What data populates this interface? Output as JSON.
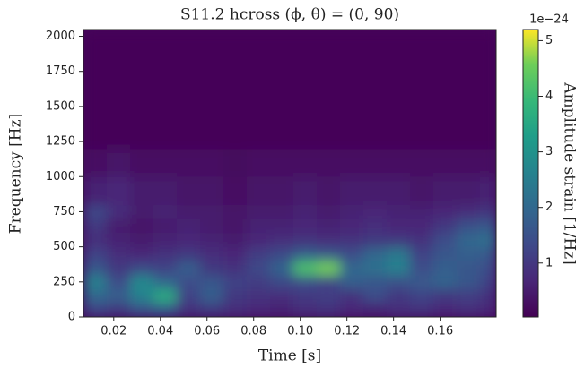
{
  "chart_data": {
    "type": "heatmap",
    "title": "S11.2 hcross  (ϕ, θ) = (0, 90)",
    "x_label": "Time [s]",
    "y_label": "Frequency [Hz]",
    "colorbar_label": "Amplitude strain [1/Hz]",
    "colorbar_offset": "1e−24",
    "colormap": "viridis",
    "xlim": [
      0.007,
      0.184
    ],
    "ylim": [
      0,
      2048
    ],
    "xticks": [
      0.02,
      0.04,
      0.06,
      0.08,
      {
        "value": 0.1,
        "label": "0.10"
      },
      0.12,
      0.14,
      0.16
    ],
    "yticks": [
      0,
      250,
      500,
      750,
      1000,
      1250,
      1500,
      1750,
      2000
    ],
    "clim": [
      0.03,
      5.2
    ],
    "cticks": [
      1,
      2,
      3,
      4,
      5
    ],
    "x_bins": [
      0.007,
      0.017,
      0.027,
      0.037,
      0.047,
      0.057,
      0.067,
      0.077,
      0.087,
      0.097,
      0.107,
      0.117,
      0.127,
      0.137,
      0.147,
      0.157,
      0.167,
      0.177,
      0.184
    ],
    "y_bins": [
      0,
      100,
      200,
      300,
      400,
      500,
      600,
      700,
      800,
      1000,
      1200,
      2048
    ],
    "z": [
      [
        1.2,
        1.0,
        1.5,
        1.6,
        0.9,
        1.0,
        0.8,
        0.7,
        0.6,
        0.8,
        0.9,
        0.7,
        0.6,
        0.8,
        0.9,
        0.7,
        0.8,
        0.7
      ],
      [
        2.0,
        1.8,
        2.6,
        3.6,
        1.2,
        1.8,
        1.0,
        0.9,
        0.8,
        1.0,
        1.1,
        0.9,
        1.4,
        1.0,
        1.2,
        1.0,
        1.1,
        0.9
      ],
      [
        2.6,
        1.4,
        2.8,
        2.0,
        1.4,
        1.6,
        1.2,
        1.1,
        1.3,
        1.4,
        1.2,
        1.8,
        1.6,
        1.5,
        1.7,
        1.9,
        1.6,
        1.2
      ],
      [
        1.6,
        1.0,
        1.3,
        1.2,
        1.8,
        1.0,
        0.9,
        1.3,
        1.9,
        4.2,
        4.6,
        2.0,
        2.2,
        2.6,
        1.4,
        1.8,
        1.6,
        1.4
      ],
      [
        1.2,
        0.8,
        0.7,
        0.9,
        1.0,
        0.8,
        0.7,
        1.1,
        1.3,
        1.8,
        1.6,
        1.4,
        2.0,
        2.4,
        1.2,
        1.6,
        1.8,
        1.7
      ],
      [
        0.8,
        0.6,
        0.5,
        0.6,
        0.7,
        0.6,
        0.5,
        0.7,
        0.8,
        0.9,
        0.8,
        0.9,
        1.0,
        1.0,
        0.9,
        1.4,
        2.0,
        2.2
      ],
      [
        1.0,
        0.5,
        0.4,
        0.5,
        0.6,
        0.5,
        0.4,
        0.6,
        0.6,
        0.7,
        0.6,
        0.7,
        0.8,
        0.7,
        0.7,
        1.0,
        1.5,
        1.7
      ],
      [
        1.3,
        0.8,
        0.5,
        0.6,
        0.5,
        0.5,
        0.4,
        0.5,
        0.5,
        0.6,
        0.5,
        0.6,
        0.7,
        0.6,
        0.6,
        0.7,
        0.8,
        1.0
      ],
      [
        0.6,
        0.7,
        0.5,
        0.5,
        0.4,
        0.4,
        0.3,
        0.4,
        0.4,
        0.5,
        0.4,
        0.5,
        0.5,
        0.5,
        0.4,
        0.5,
        0.5,
        0.6
      ],
      [
        0.3,
        0.4,
        0.3,
        0.3,
        0.3,
        0.3,
        0.2,
        0.3,
        0.3,
        0.3,
        0.3,
        0.3,
        0.3,
        0.3,
        0.3,
        0.3,
        0.3,
        0.3
      ],
      [
        0.1,
        0.1,
        0.1,
        0.1,
        0.1,
        0.1,
        0.1,
        0.1,
        0.1,
        0.1,
        0.1,
        0.1,
        0.1,
        0.1,
        0.1,
        0.1,
        0.1,
        0.1
      ]
    ]
  }
}
